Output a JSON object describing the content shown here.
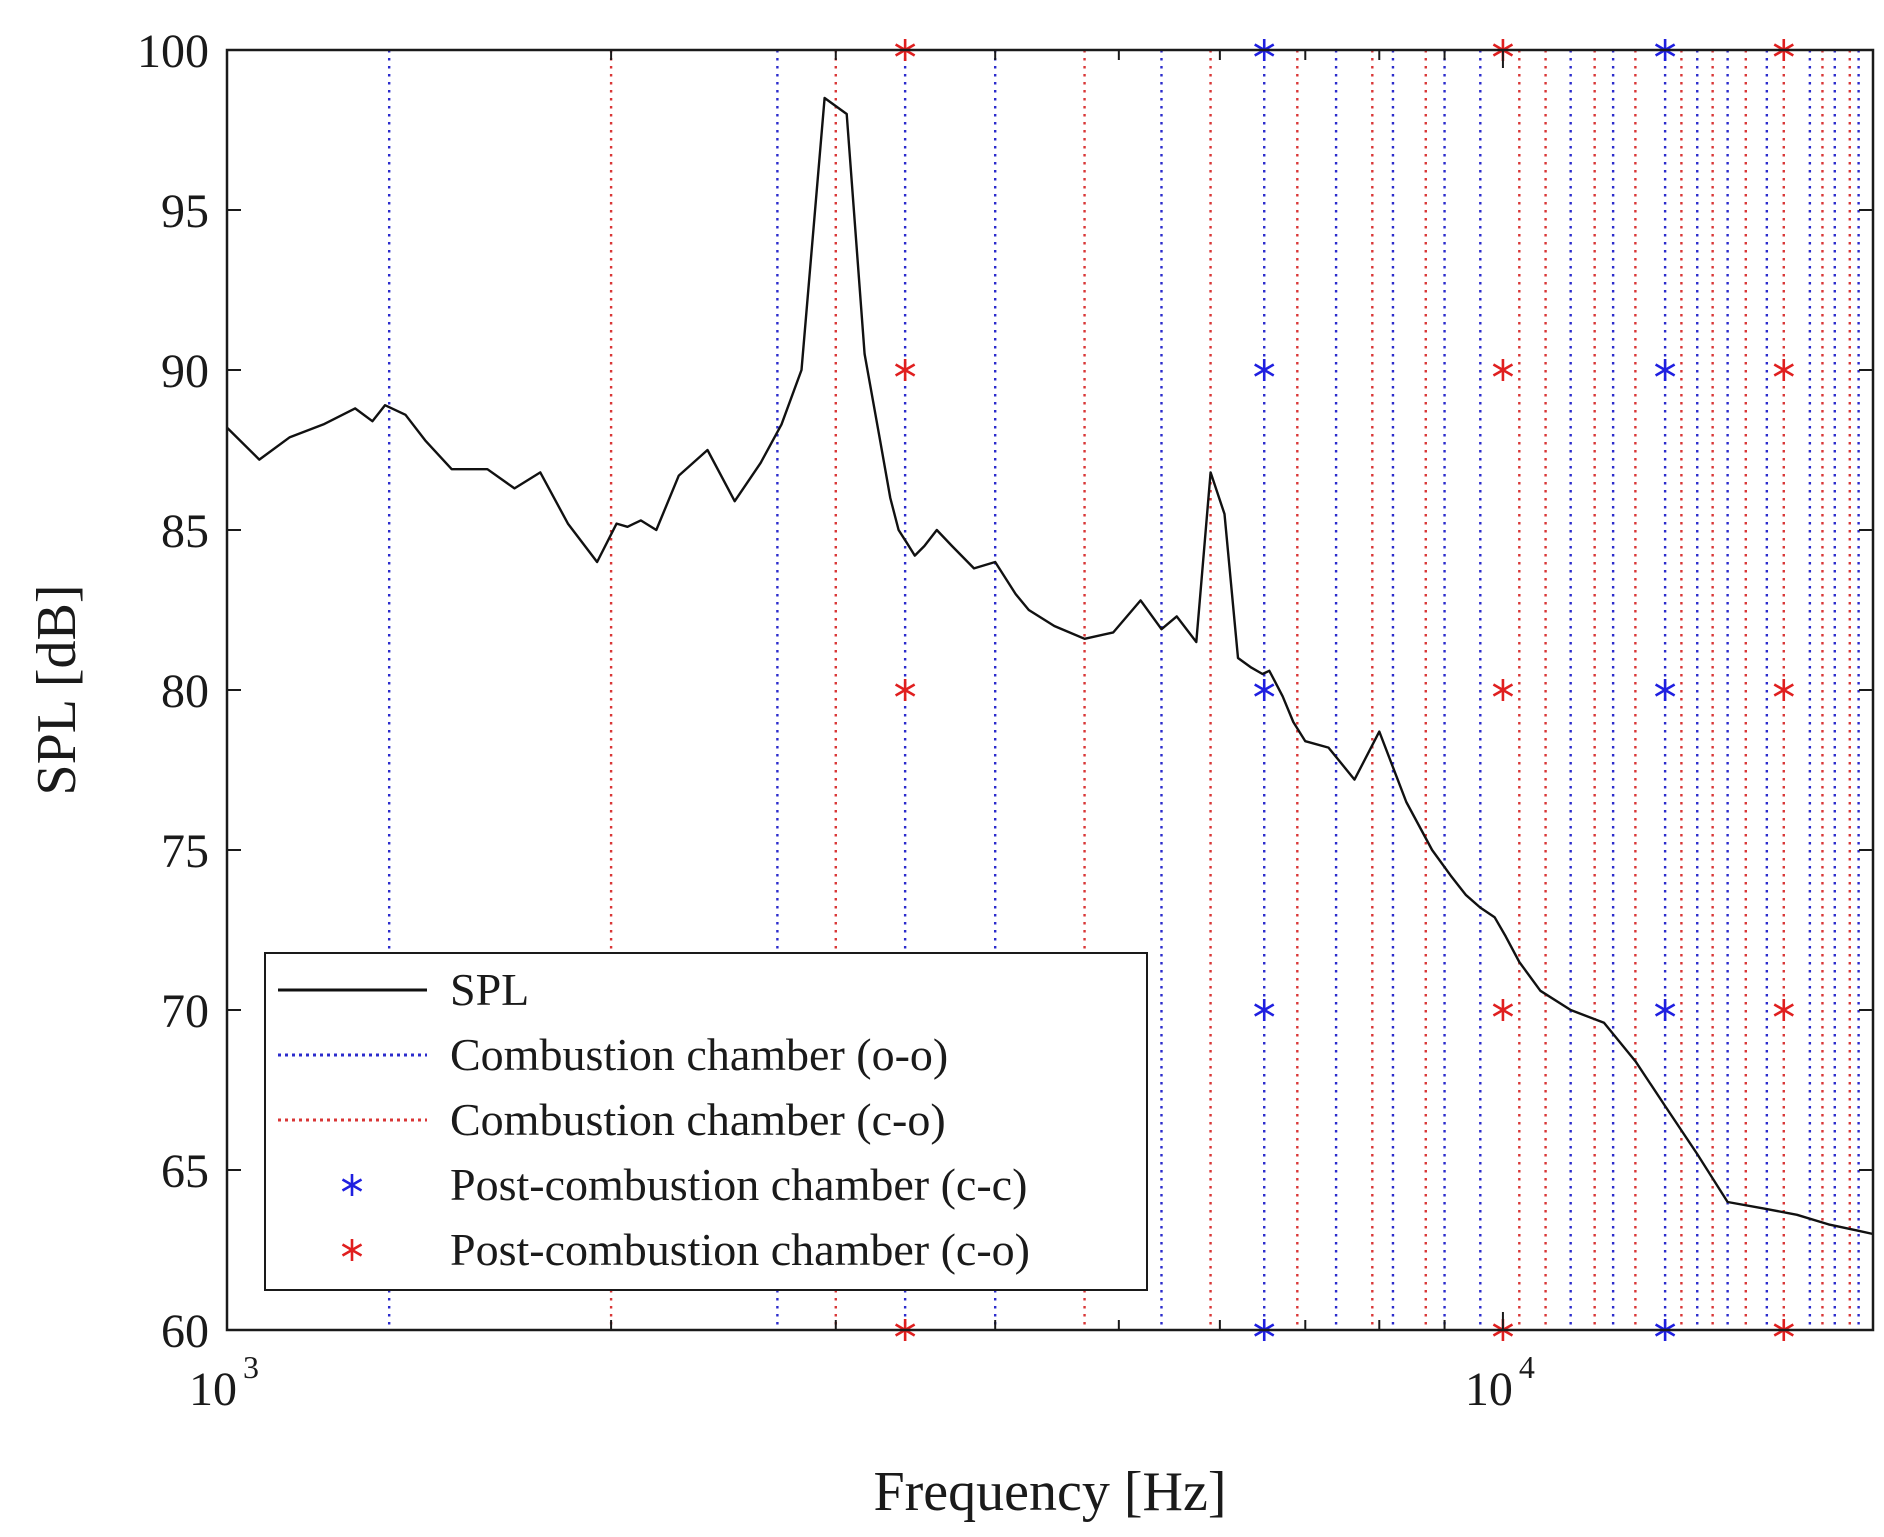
{
  "chart_data": {
    "type": "line",
    "title": "",
    "xlabel": "Frequency [Hz]",
    "ylabel": "SPL [dB]",
    "xscale": "log",
    "xlim": [
      1000,
      19500
    ],
    "ylim": [
      60,
      100
    ],
    "grid": false,
    "legend_position": "bottom-left",
    "colors": {
      "spl": "#111111",
      "oo": "#2b2bcc",
      "co": "#d93636",
      "cc_star": "#1f1fe0",
      "co_star": "#e01f1f"
    },
    "x_ticks": [
      {
        "base": "10",
        "exp": "3",
        "value": 1000
      },
      {
        "base": "10",
        "exp": "4",
        "value": 10000
      }
    ],
    "y_ticks": [
      "60",
      "65",
      "70",
      "75",
      "80",
      "85",
      "90",
      "95",
      "100"
    ],
    "legend": [
      {
        "label": "SPL",
        "kind": "line"
      },
      {
        "label": "Combustion chamber (o-o)",
        "kind": "dotted-oo"
      },
      {
        "label": "Combustion chamber (c-o)",
        "kind": "dotted-co"
      },
      {
        "label": "Post-combustion chamber (c-c)",
        "kind": "star-cc"
      },
      {
        "label": "Post-combustion chamber (c-o)",
        "kind": "star-co"
      }
    ],
    "series": [
      {
        "name": "SPL",
        "x": [
          1000,
          1060,
          1120,
          1190,
          1260,
          1300,
          1330,
          1380,
          1430,
          1500,
          1600,
          1680,
          1760,
          1850,
          1950,
          2020,
          2060,
          2110,
          2170,
          2260,
          2380,
          2500,
          2620,
          2720,
          2820,
          2940,
          3060,
          3160,
          3250,
          3310,
          3360,
          3410,
          3460,
          3520,
          3600,
          3700,
          3850,
          4000,
          4150,
          4250,
          4450,
          4700,
          4950,
          5200,
          5400,
          5550,
          5750,
          5900,
          6050,
          6200,
          6350,
          6480,
          6560,
          6620,
          6720,
          6850,
          7000,
          7300,
          7650,
          8000,
          8400,
          8800,
          9100,
          9350,
          9600,
          9850,
          10050,
          10300,
          10700,
          11300,
          12000,
          12700,
          13400,
          14200,
          15000,
          16000,
          17000,
          18000,
          19000,
          19500
        ],
        "y": [
          88.2,
          87.2,
          87.9,
          88.3,
          88.8,
          88.4,
          88.9,
          88.6,
          87.8,
          86.9,
          86.9,
          86.3,
          86.8,
          85.2,
          84.0,
          85.2,
          85.1,
          85.3,
          85.0,
          86.7,
          87.5,
          85.9,
          87.1,
          88.3,
          90.0,
          98.5,
          98.0,
          90.5,
          87.8,
          86.0,
          85.0,
          84.6,
          84.2,
          84.5,
          85.0,
          84.5,
          83.8,
          84.0,
          83.0,
          82.5,
          82.0,
          81.6,
          81.8,
          82.8,
          81.9,
          82.3,
          81.5,
          86.8,
          85.5,
          81.0,
          80.7,
          80.5,
          80.6,
          80.3,
          79.8,
          79.0,
          78.4,
          78.2,
          77.2,
          78.7,
          76.5,
          75.0,
          74.2,
          73.6,
          73.2,
          72.9,
          72.3,
          71.5,
          70.6,
          70.0,
          69.6,
          68.4,
          67.0,
          65.5,
          64.0,
          63.8,
          63.6,
          63.3,
          63.1,
          63.0
        ]
      }
    ],
    "vlines_oo": [
      1340,
      2700,
      3400,
      4000,
      5400,
      6500,
      7400,
      8200,
      9000,
      9600,
      11300,
      12200,
      13400,
      14200,
      15000,
      16100,
      17400,
      18200,
      19000
    ],
    "vlines_co": [
      2000,
      3000,
      4700,
      5900,
      6900,
      7900,
      8700,
      10300,
      10800,
      11800,
      12700,
      13800,
      14600,
      15500,
      16600,
      17800,
      18700
    ],
    "stars_cc": [
      {
        "x": 6500,
        "y": [
          60,
          70,
          80,
          90,
          100
        ]
      },
      {
        "x": 13400,
        "y": [
          60,
          70,
          80,
          90,
          100
        ]
      }
    ],
    "stars_co": [
      {
        "x": 3400,
        "y": [
          60,
          80,
          90,
          100
        ]
      },
      {
        "x": 10000,
        "y": [
          60,
          70,
          80,
          90,
          100
        ]
      },
      {
        "x": 16600,
        "y": [
          60,
          70,
          80,
          90,
          100
        ]
      }
    ]
  }
}
